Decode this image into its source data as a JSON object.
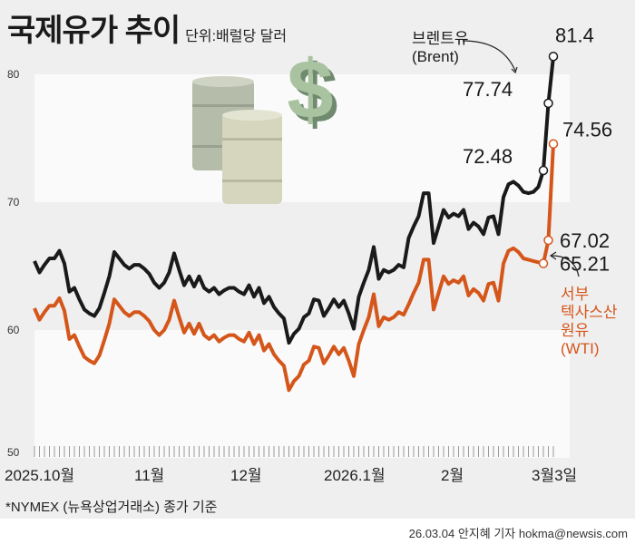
{
  "header": {
    "title": "국제유가 추이",
    "unit": "단위:배럴당 달러"
  },
  "footer": {
    "note": "*NYMEX (뉴욕상업거래소) 종가 기준",
    "credit": "26.03.04 안지혜 기자 hokma@newsis.com"
  },
  "illustration": {
    "icons": [
      "oil-barrel-icon",
      "dollar-sign-icon"
    ]
  },
  "chart_data": {
    "type": "line",
    "title": "국제유가 추이",
    "ylabel": "단위:배럴당 달러",
    "ylim": [
      50,
      80
    ],
    "yticks": [
      50,
      60,
      70,
      80
    ],
    "xtick_labels": [
      "2025.10월",
      "11월",
      "12월",
      "2026.1월",
      "2월",
      "3월3일"
    ],
    "grid": "alternating horizontal bands",
    "series": [
      {
        "name": "브렌트유 (Brent)",
        "label_lines": [
          "브렌트유",
          "(Brent)"
        ],
        "color": "#1a1a1a",
        "values": [
          65.4,
          64.5,
          65.1,
          65.6,
          65.6,
          66.2,
          65.2,
          63.0,
          63.3,
          62.4,
          61.6,
          61.3,
          61.1,
          61.7,
          62.9,
          64.2,
          66.1,
          65.6,
          65.1,
          64.8,
          65.1,
          65.1,
          64.8,
          64.4,
          63.7,
          63.3,
          63.7,
          64.5,
          66.0,
          64.7,
          63.5,
          64.2,
          63.4,
          64.2,
          63.3,
          63.0,
          63.3,
          62.8,
          63.1,
          63.3,
          63.3,
          63.0,
          62.8,
          63.5,
          62.6,
          63.3,
          62.1,
          62.6,
          61.8,
          61.3,
          60.9,
          59.0,
          59.7,
          60.1,
          61.0,
          61.3,
          62.4,
          62.3,
          61.1,
          61.7,
          62.4,
          61.8,
          62.3,
          61.3,
          60.1,
          62.6,
          63.7,
          64.7,
          66.5,
          64.0,
          64.7,
          64.5,
          64.7,
          65.1,
          64.9,
          67.2,
          68.1,
          68.9,
          70.7,
          70.7,
          66.8,
          68.1,
          69.4,
          68.8,
          69.1,
          68.9,
          69.4,
          67.9,
          68.4,
          68.1,
          67.5,
          68.8,
          68.9,
          67.5,
          70.4,
          71.4,
          71.6,
          71.3,
          70.8,
          70.7,
          70.8,
          71.2,
          72.48,
          77.74,
          81.4
        ],
        "annotations": [
          "72.48",
          "77.74",
          "81.4"
        ]
      },
      {
        "name": "서부텍사스산원유 (WTI)",
        "label_lines": [
          "서부",
          "텍사스산",
          "원유",
          "(WTI)"
        ],
        "color": "#d4561a",
        "values": [
          61.7,
          60.8,
          61.4,
          61.9,
          61.9,
          62.5,
          61.5,
          59.3,
          59.6,
          58.7,
          57.9,
          57.6,
          57.4,
          58.0,
          59.2,
          60.5,
          62.4,
          61.9,
          61.4,
          61.1,
          61.4,
          61.4,
          61.1,
          60.7,
          60.0,
          59.6,
          60.0,
          60.8,
          62.3,
          61.0,
          59.8,
          60.5,
          59.7,
          60.5,
          59.6,
          59.3,
          59.6,
          59.1,
          59.4,
          59.6,
          59.6,
          59.3,
          59.1,
          59.8,
          58.9,
          59.6,
          58.4,
          58.9,
          58.1,
          57.6,
          57.2,
          55.3,
          56.0,
          56.4,
          57.3,
          57.6,
          58.7,
          58.6,
          57.4,
          58.0,
          58.7,
          58.1,
          58.6,
          57.6,
          56.4,
          58.9,
          60.0,
          61.0,
          62.8,
          60.3,
          61.0,
          60.8,
          61.0,
          61.4,
          61.2,
          62.0,
          62.9,
          63.7,
          65.5,
          65.5,
          61.6,
          62.9,
          64.2,
          63.6,
          63.9,
          63.7,
          64.2,
          62.7,
          63.2,
          62.9,
          62.3,
          63.6,
          63.7,
          62.3,
          65.2,
          66.2,
          66.4,
          66.1,
          65.6,
          65.5,
          65.4,
          65.3,
          65.21,
          67.02,
          74.56
        ],
        "annotations": [
          "65.21",
          "67.02",
          "74.56"
        ]
      }
    ]
  }
}
